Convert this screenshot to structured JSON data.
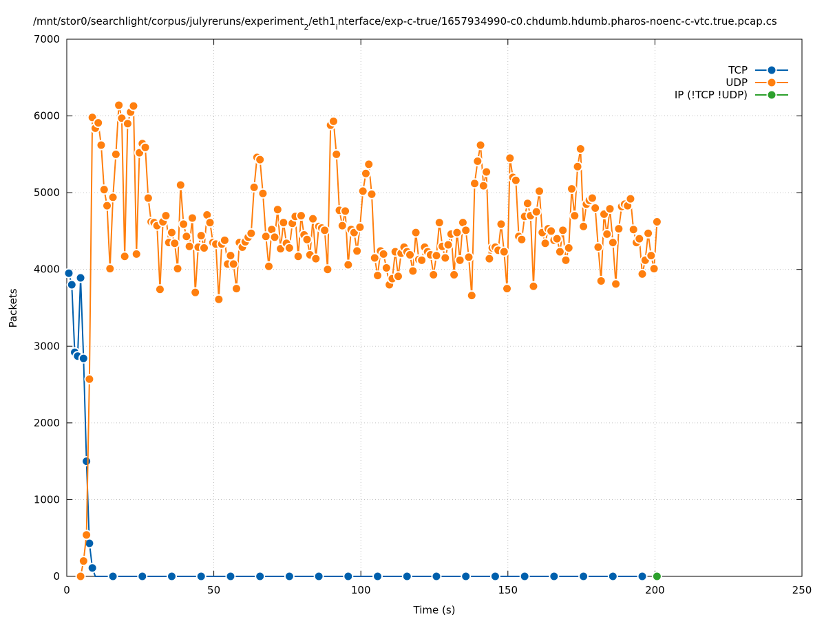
{
  "chart_data": {
    "type": "line",
    "title": [
      {
        "text": "/mnt/stor0/searchlight/corpus/julyreruns/experiment"
      },
      {
        "text": "2",
        "sub": true
      },
      {
        "text": "/eth1"
      },
      {
        "text": "i",
        "sub": true
      },
      {
        "text": "nterface/exp-c-true/1657934990-c0.chdumb.hdumb.pharos-noenc-c-vtc.true.pcap.cs"
      }
    ],
    "xlabel": "Time (s)",
    "ylabel": "Packets",
    "xlim": [
      0,
      250
    ],
    "ylim": [
      0,
      7000
    ],
    "xticks": [
      0,
      50,
      100,
      150,
      200,
      250
    ],
    "yticks": [
      0,
      1000,
      2000,
      3000,
      4000,
      5000,
      6000,
      7000
    ],
    "grid": true,
    "legend": "top-right",
    "x": [
      0.7,
      1.7,
      2.7,
      3.7,
      4.7,
      5.7,
      6.7,
      7.7,
      8.7,
      9.7,
      10.7,
      11.7,
      12.7,
      13.7,
      14.7,
      15.7,
      16.7,
      17.7,
      18.7,
      19.7,
      20.7,
      21.7,
      22.7,
      23.7,
      24.7,
      25.7,
      26.7,
      27.7,
      28.7,
      29.7,
      30.7,
      31.7,
      32.7,
      33.7,
      34.7,
      35.7,
      36.7,
      37.7,
      38.7,
      39.7,
      40.7,
      41.7,
      42.7,
      43.7,
      44.7,
      45.7,
      46.7,
      47.7,
      48.7,
      49.7,
      50.7,
      51.7,
      52.7,
      53.7,
      54.7,
      55.7,
      56.7,
      57.7,
      58.7,
      59.7,
      60.7,
      61.7,
      62.7,
      63.7,
      64.7,
      65.7,
      66.7,
      67.7,
      68.7,
      69.7,
      70.7,
      71.7,
      72.7,
      73.7,
      74.7,
      75.7,
      76.7,
      77.7,
      78.7,
      79.7,
      80.7,
      81.7,
      82.7,
      83.7,
      84.7,
      85.7,
      86.7,
      87.7,
      88.7,
      89.7,
      90.7,
      91.7,
      92.7,
      93.7,
      94.7,
      95.7,
      96.7,
      97.7,
      98.7,
      99.7,
      100.7,
      101.7,
      102.7,
      103.7,
      104.7,
      105.7,
      106.7,
      107.7,
      108.7,
      109.7,
      110.7,
      111.7,
      112.7,
      113.7,
      114.7,
      115.7,
      116.7,
      117.7,
      118.7,
      119.7,
      120.7,
      121.7,
      122.7,
      123.7,
      124.7,
      125.7,
      126.7,
      127.7,
      128.7,
      129.7,
      130.7,
      131.7,
      132.7,
      133.7,
      134.7,
      135.7,
      136.7,
      137.7,
      138.7,
      139.7,
      140.7,
      141.7,
      142.7,
      143.7,
      144.7,
      145.7,
      146.7,
      147.7,
      148.7,
      149.7,
      150.7,
      151.7,
      152.7,
      153.7,
      154.7,
      155.7,
      156.7,
      157.7,
      158.7,
      159.7,
      160.7,
      161.7,
      162.7,
      163.7,
      164.7,
      165.7,
      166.7,
      167.7,
      168.7,
      169.7,
      170.7,
      171.7,
      172.7,
      173.7,
      174.7,
      175.7,
      176.7,
      177.7,
      178.7,
      179.7,
      180.7,
      181.7,
      182.7,
      183.7,
      184.7,
      185.7,
      186.7,
      187.7,
      188.7,
      189.7,
      190.7,
      191.7,
      192.7,
      193.7,
      194.7,
      195.7,
      196.7,
      197.7,
      198.7,
      199.7,
      200.7
    ],
    "series": [
      {
        "name": "TCP",
        "color": "#0060ad",
        "zero_marker_interval": 10,
        "values": [
          3950,
          3800,
          2920,
          2870,
          3890,
          2840,
          1500,
          430,
          110,
          0,
          0,
          0,
          0,
          0,
          0,
          0,
          0,
          0,
          0,
          0,
          0,
          0,
          0,
          0,
          0,
          0,
          0,
          0,
          0,
          0,
          0,
          0,
          0,
          0,
          0,
          0,
          0,
          0,
          0,
          0,
          0,
          0,
          0,
          0,
          0,
          0,
          0,
          0,
          0,
          0,
          0,
          0,
          0,
          0,
          0,
          0,
          0,
          0,
          0,
          0,
          0,
          0,
          0,
          0,
          0,
          0,
          0,
          0,
          0,
          0,
          0,
          0,
          0,
          0,
          0,
          0,
          0,
          0,
          0,
          0,
          0,
          0,
          0,
          0,
          0,
          0,
          0,
          0,
          0,
          0,
          0,
          0,
          0,
          0,
          0,
          0,
          0,
          0,
          0,
          0,
          0,
          0,
          0,
          0,
          0,
          0,
          0,
          0,
          0,
          0,
          0,
          0,
          0,
          0,
          0,
          0,
          0,
          0,
          0,
          0,
          0,
          0,
          0,
          0,
          0,
          0,
          0,
          0,
          0,
          0,
          0,
          0,
          0,
          0,
          0,
          0,
          0,
          0,
          0,
          0,
          0,
          0,
          0,
          0,
          0,
          0,
          0,
          0,
          0,
          0,
          0,
          0,
          0,
          0,
          0,
          0,
          0,
          0,
          0,
          0,
          0,
          0,
          0,
          0,
          0,
          0,
          0,
          0,
          0,
          0,
          0,
          0,
          0,
          0,
          0,
          0,
          0,
          0,
          0,
          0,
          0,
          0,
          0,
          0,
          0,
          0,
          0,
          0,
          0,
          0,
          0,
          0,
          0,
          0,
          0,
          0,
          0,
          null,
          null,
          null,
          null
        ]
      },
      {
        "name": "UDP",
        "color": "#ff7f0e",
        "values": [
          null,
          null,
          null,
          null,
          0,
          200,
          540,
          2570,
          5980,
          5840,
          5910,
          5620,
          5040,
          4830,
          4010,
          4940,
          5500,
          6140,
          5970,
          4170,
          5900,
          6050,
          6130,
          4200,
          5520,
          5640,
          5590,
          4930,
          4620,
          4610,
          4570,
          3740,
          4620,
          4700,
          4350,
          4480,
          4340,
          4010,
          5100,
          4590,
          4430,
          4300,
          4670,
          3700,
          4290,
          4440,
          4280,
          4710,
          4610,
          4350,
          4330,
          3610,
          4330,
          4380,
          4070,
          4180,
          4070,
          3750,
          4350,
          4290,
          4360,
          4420,
          4470,
          5070,
          5460,
          5430,
          4990,
          4430,
          4040,
          4520,
          4420,
          4780,
          4270,
          4610,
          4340,
          4280,
          4600,
          4690,
          4170,
          4700,
          4450,
          4390,
          4190,
          4660,
          4140,
          4560,
          4540,
          4510,
          4000,
          5880,
          5930,
          5500,
          4770,
          4570,
          4760,
          4060,
          4520,
          4480,
          4240,
          4550,
          5020,
          5250,
          5370,
          4980,
          4150,
          3920,
          4240,
          4200,
          4020,
          3800,
          3880,
          4230,
          3910,
          4210,
          4290,
          4230,
          4190,
          3980,
          4480,
          4130,
          4120,
          4290,
          4230,
          4190,
          3930,
          4180,
          4610,
          4300,
          4150,
          4320,
          4460,
          3930,
          4480,
          4120,
          4610,
          4510,
          4160,
          3660,
          5120,
          5410,
          5620,
          5090,
          5270,
          4140,
          4280,
          4290,
          4250,
          4590,
          4230,
          3750,
          5450,
          5200,
          5160,
          4430,
          4390,
          4690,
          4860,
          4700,
          3780,
          4750,
          5020,
          4480,
          4340,
          4530,
          4500,
          4380,
          4400,
          4230,
          4510,
          4120,
          4280,
          5050,
          4700,
          5340,
          5570,
          4560,
          4850,
          4900,
          4930,
          4800,
          4290,
          3850,
          4720,
          4460,
          4790,
          4350,
          3810,
          4530,
          4820,
          4850,
          4830,
          4920,
          4520,
          4350,
          4400,
          3940,
          4120,
          4470,
          4180,
          4010,
          4620
        ]
      },
      {
        "name": "IP (!TCP  !UDP)",
        "color": "#2ca02c",
        "x": [
          200.7
        ],
        "values": [
          0
        ]
      }
    ]
  }
}
